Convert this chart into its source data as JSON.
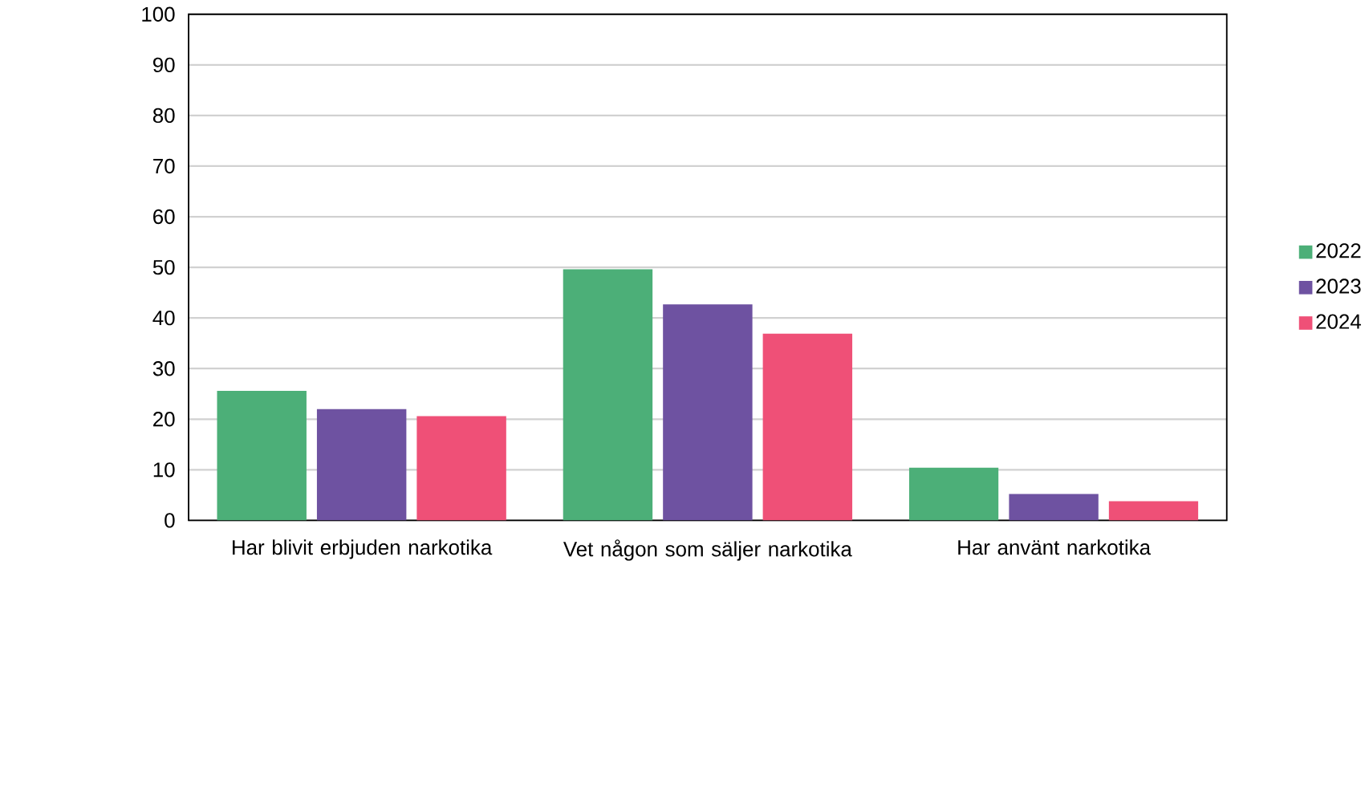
{
  "chart_data": {
    "type": "bar",
    "categories": [
      "Har blivit erbjuden narkotika",
      "Vet någon som säljer narkotika",
      "Har använt narkotika"
    ],
    "series": [
      {
        "name": "2022",
        "color": "#4caf78",
        "values": [
          25.6,
          49.6,
          10.4
        ]
      },
      {
        "name": "2023",
        "color": "#6e52a1",
        "values": [
          22.0,
          42.7,
          5.2
        ]
      },
      {
        "name": "2024",
        "color": "#ef5077",
        "values": [
          20.6,
          36.9,
          3.8
        ]
      }
    ],
    "ylim": [
      0,
      100
    ],
    "yticks": [
      0,
      10,
      20,
      30,
      40,
      50,
      60,
      70,
      80,
      90,
      100
    ],
    "grid": "y",
    "legend": "right"
  }
}
